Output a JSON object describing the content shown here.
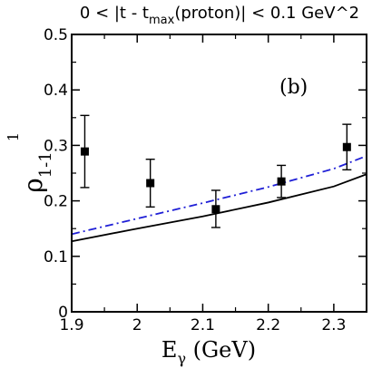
{
  "chart_data": {
    "type": "scatter",
    "title": {
      "prefix": "0 < |t - t",
      "sub": "max",
      "suffix": "(proton)| < 0.1 GeV^2"
    },
    "panel_label": "(b)",
    "xlabel": {
      "main": "E",
      "sub": "γ",
      "rest": " (GeV)"
    },
    "ylabel": {
      "main": "ρ",
      "sup": "1",
      "sub": "1-1"
    },
    "xlim": [
      1.9,
      2.35
    ],
    "ylim": [
      0.0,
      0.5
    ],
    "x_ticks": [
      1.9,
      2.0,
      2.1,
      2.2,
      2.3
    ],
    "x_tick_labels": [
      "1.9",
      "2",
      "2.1",
      "2.2",
      "2.3"
    ],
    "y_ticks": [
      0.0,
      0.1,
      0.2,
      0.3,
      0.4,
      0.5
    ],
    "y_tick_labels": [
      "0",
      "0.1",
      "0.2",
      "0.3",
      "0.4",
      "0.5"
    ],
    "grid": false,
    "series": [
      {
        "kind": "points",
        "color": "#000000",
        "x": [
          1.92,
          2.02,
          2.12,
          2.22,
          2.32
        ],
        "y": [
          0.289,
          0.232,
          0.185,
          0.235,
          0.297
        ],
        "err_low": [
          0.224,
          0.189,
          0.152,
          0.206,
          0.256
        ],
        "err_high": [
          0.354,
          0.275,
          0.219,
          0.264,
          0.338
        ]
      },
      {
        "kind": "line",
        "style": "solid",
        "color": "#000000",
        "x": [
          1.9,
          2.0,
          2.1,
          2.2,
          2.3,
          2.35
        ],
        "y": [
          0.127,
          0.15,
          0.172,
          0.197,
          0.226,
          0.248
        ]
      },
      {
        "kind": "line",
        "style": "dashdot",
        "color": "#1f1fd6",
        "x": [
          1.9,
          2.0,
          2.1,
          2.2,
          2.3,
          2.35
        ],
        "y": [
          0.14,
          0.168,
          0.196,
          0.225,
          0.258,
          0.281
        ]
      }
    ]
  }
}
